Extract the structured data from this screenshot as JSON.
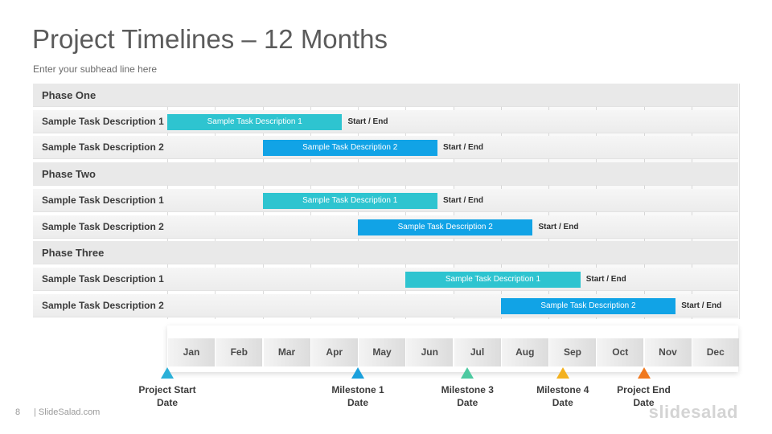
{
  "slide": {
    "title": "Project Timelines – 12 Months",
    "subtitle": "Enter your subhead  line here"
  },
  "rows": [
    {
      "label": "Phase One",
      "type": "phase"
    },
    {
      "label": "Sample Task Description 1",
      "type": "task",
      "bar": "Sample Task Description 1",
      "start_month": 0,
      "end_month": 3.67,
      "color": "#2ec4d0",
      "tag": "Start / End"
    },
    {
      "label": "Sample Task Description 2",
      "type": "task",
      "bar": "Sample Task Description 2",
      "start_month": 2,
      "end_month": 5.67,
      "color": "#11a3e6",
      "tag": "Start / End"
    },
    {
      "label": "Phase Two",
      "type": "phase"
    },
    {
      "label": "Sample Task Description 1",
      "type": "task",
      "bar": "Sample Task Description 1",
      "start_month": 2,
      "end_month": 5.67,
      "color": "#2ec4d0",
      "tag": "Start / End"
    },
    {
      "label": "Sample Task Description 2",
      "type": "task",
      "bar": "Sample Task Description 2",
      "start_month": 4,
      "end_month": 7.67,
      "color": "#11a3e6",
      "tag": "Start / End"
    },
    {
      "label": "Phase Three",
      "type": "phase"
    },
    {
      "label": "Sample Task Description 1",
      "type": "task",
      "bar": "Sample Task Description 1",
      "start_month": 5,
      "end_month": 8.67,
      "color": "#2ec4d0",
      "tag": "Start / End"
    },
    {
      "label": "Sample Task Description 2",
      "type": "task",
      "bar": "Sample Task Description 2",
      "start_month": 7,
      "end_month": 10.67,
      "color": "#11a3e6",
      "tag": "Start / End"
    }
  ],
  "months": [
    "Jan",
    "Feb",
    "Mar",
    "Apr",
    "May",
    "Jun",
    "Jul",
    "Aug",
    "Sep",
    "Oct",
    "Nov",
    "Dec"
  ],
  "milestones": [
    {
      "label": "Project Start\nDate",
      "month": 0,
      "color": "#2bb0d8"
    },
    {
      "label": "Milestone  1\nDate",
      "month": 4,
      "color": "#1aa0dc"
    },
    {
      "label": "Milestone  3\nDate",
      "month": 6.3,
      "color": "#4cc9a0"
    },
    {
      "label": "Milestone  4\nDate",
      "month": 8.3,
      "color": "#f3b11f"
    },
    {
      "label": "Project End\nDate",
      "month": 10,
      "color": "#f0781e"
    }
  ],
  "footer": {
    "page_number": "8",
    "brand": "| SlideSalad.com",
    "logo": "slidesalad"
  }
}
